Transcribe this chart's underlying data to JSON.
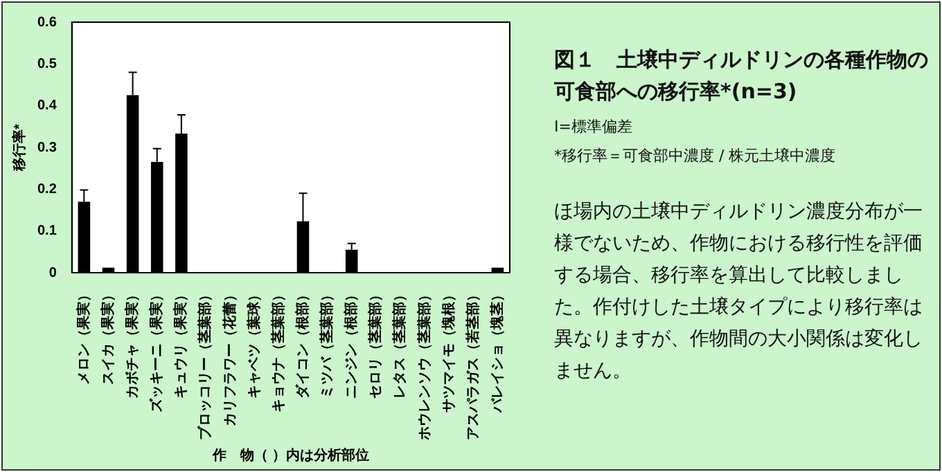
{
  "chart_data": {
    "type": "bar",
    "title": "図１　土壌中ディルドリンの各種作物の可食部への移行率*(n=3)",
    "xlabel": "作　物（ ）内は分析部位",
    "ylabel": "移行率*",
    "categories": [
      "メロン（果実）",
      "スイカ（果実）",
      "カボチャ（果実）",
      "ズッキーニ（果実）",
      "キュウリ（果実）",
      "ブロッコリー（茎葉部）",
      "カリフラワー（花蕾）",
      "キャベツ（葉球）",
      "キョウナ（茎葉部）",
      "ダイコン（根部）",
      "ミツバ（茎葉部）",
      "ニンジン（根部）",
      "セロリ（茎葉部）",
      "レタス（茎葉部）",
      "ホウレンソウ（茎葉部）",
      "サツマイモ（塊根）",
      "アスパラガス（若茎部）",
      "バレイショ（塊茎）"
    ],
    "values": [
      0.17,
      0.012,
      0.425,
      0.265,
      0.333,
      0,
      0,
      0,
      0,
      0.123,
      0,
      0.055,
      0,
      0,
      0,
      0,
      0,
      0.012
    ],
    "errors": [
      [
        0.17,
        0.198
      ],
      null,
      [
        0.425,
        0.48
      ],
      [
        0.265,
        0.297
      ],
      [
        0.333,
        0.378
      ],
      null,
      null,
      null,
      null,
      [
        0.123,
        0.19
      ],
      null,
      [
        0.055,
        0.07
      ],
      null,
      null,
      null,
      null,
      null,
      null
    ],
    "color": "#000000",
    "ylim": [
      0,
      0.6
    ],
    "yticks": [
      0,
      0.1,
      0.2,
      0.3,
      0.4,
      0.5,
      0.6
    ],
    "grid": false,
    "legend": false,
    "annotations": [
      "I=標準偏差",
      "*移行率＝可食部中濃度 / 株元土壌中濃度",
      "ほ場内の土壌中ディルドリン濃度分布が一様でないため、作物における移行性を評価する場合、移行率を算出して比較しました。作付けした土壌タイプにより移行率は異なりますが、作物間の大小関係は変化しません。"
    ]
  }
}
